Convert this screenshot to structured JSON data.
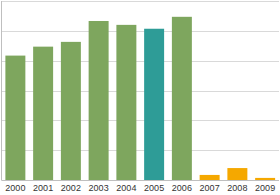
{
  "chart_data": {
    "type": "bar",
    "categories": [
      "2000",
      "2001",
      "2002",
      "2003",
      "2004",
      "2005",
      "2006",
      "2007",
      "2008",
      "2009"
    ],
    "values": [
      4.17,
      4.47,
      4.63,
      5.33,
      5.2,
      5.07,
      5.47,
      0.17,
      0.4,
      0.07
    ],
    "colors": [
      "#7ea65e",
      "#7ea65e",
      "#7ea65e",
      "#7ea65e",
      "#7ea65e",
      "#2e9c97",
      "#7ea65e",
      "#f5a800",
      "#f5a800",
      "#f5a800"
    ],
    "ylim": [
      0,
      6
    ],
    "yticks": [
      0,
      1,
      2,
      3,
      4,
      5,
      6
    ],
    "grid": true,
    "tick_labels": "x"
  }
}
